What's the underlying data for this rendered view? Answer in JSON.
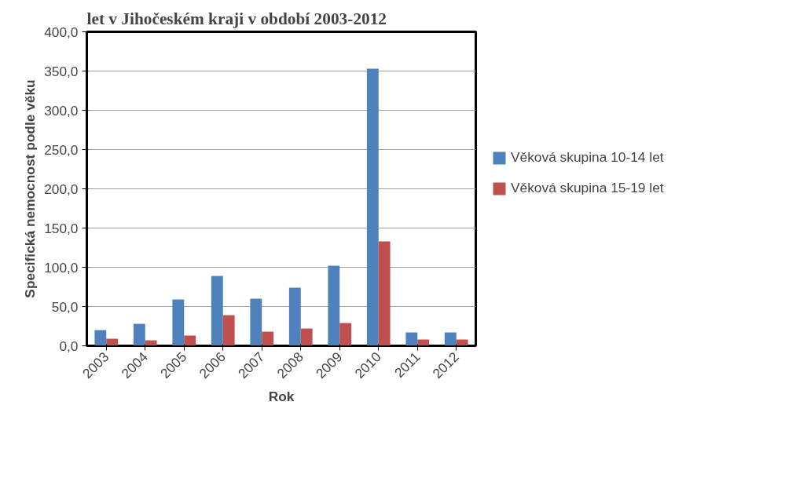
{
  "chart_data": {
    "type": "bar",
    "title": "let v Jihočeském kraji v období 2003-2012",
    "xlabel": "Rok",
    "ylabel": "Specifická nemocnost podle věku",
    "categories": [
      "2003",
      "2004",
      "2005",
      "2006",
      "2007",
      "2008",
      "2009",
      "2010",
      "2011",
      "2012"
    ],
    "series": [
      {
        "name": "Věková skupina 10-14 let",
        "color": "#4f81bd",
        "values": [
          20,
          28,
          59,
          89,
          60,
          74,
          102,
          353,
          17,
          17
        ]
      },
      {
        "name": "Věková skupina 15-19 let",
        "color": "#c0504d",
        "values": [
          9,
          7,
          13,
          39,
          18,
          22,
          29,
          133,
          8,
          8
        ]
      }
    ],
    "ylim": [
      0,
      400
    ],
    "yticks": [
      {
        "value": 0,
        "label": "0,0"
      },
      {
        "value": 50,
        "label": "50,0"
      },
      {
        "value": 100,
        "label": "100,0"
      },
      {
        "value": 150,
        "label": "150,0"
      },
      {
        "value": 200,
        "label": "200,0"
      },
      {
        "value": 250,
        "label": "250,0"
      },
      {
        "value": 300,
        "label": "300,0"
      },
      {
        "value": 350,
        "label": "350,0"
      },
      {
        "value": 400,
        "label": "400,0"
      }
    ],
    "grid": "y",
    "legend": "right"
  }
}
